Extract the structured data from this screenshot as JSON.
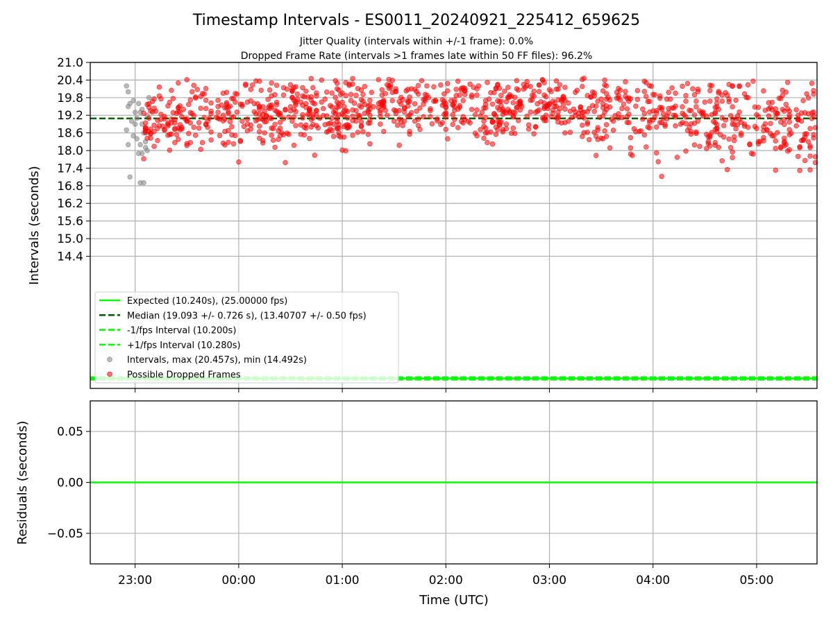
{
  "chart_data": [
    {
      "type": "scatter",
      "title": "Timestamp Intervals - ES0011_20240921_225412_659625",
      "subtitle_lines": [
        "Jitter Quality (intervals within +/-1 frame): 0.0%",
        "Dropped Frame Rate (intervals >1 frames late within 50 FF files): 96.2%"
      ],
      "xlabel": "",
      "ylabel": "Intervals (seconds)",
      "xlim": [
        "22:34",
        "05:35"
      ],
      "xticks": [
        {
          "t": "23:00",
          "label": ""
        },
        {
          "t": "00:00",
          "label": ""
        },
        {
          "t": "01:00",
          "label": ""
        },
        {
          "t": "02:00",
          "label": ""
        },
        {
          "t": "03:00",
          "label": ""
        },
        {
          "t": "04:00",
          "label": ""
        },
        {
          "t": "05:00",
          "label": ""
        }
      ],
      "ylim": [
        9.9,
        21.0
      ],
      "yticks": [
        14.4,
        15.0,
        15.6,
        16.2,
        16.8,
        17.4,
        18.0,
        18.6,
        19.2,
        19.8,
        20.4,
        21.0
      ],
      "ytick_labels": [
        "14.4",
        "15.0",
        "15.6",
        "16.2",
        "16.8",
        "17.4",
        "18.0",
        "18.6",
        "19.2",
        "19.8",
        "20.4",
        "21.0"
      ],
      "grid": true,
      "legend_position": "lower-left",
      "lines": [
        {
          "name": "Expected (10.240s), (25.00000 fps)",
          "y": 10.24,
          "color": "#00ff00",
          "style": "solid"
        },
        {
          "name": "Median (19.093 +/- 0.726 s), (13.40707 +/- 0.50 fps)",
          "y": 19.093,
          "color": "#006400",
          "style": "dashed"
        },
        {
          "name": "-1/fps Interval (10.200s)",
          "y": 10.2,
          "color": "#00ff00",
          "style": "dashed"
        },
        {
          "name": "+1/fps Interval (10.280s)",
          "y": 10.28,
          "color": "#00ff00",
          "style": "dashed"
        }
      ],
      "series": [
        {
          "name": "Intervals, max (20.457s), min (14.492s)",
          "color": "#808080",
          "points": [
            [
              "22:55",
              20.2
            ],
            [
              "22:56",
              20.0
            ],
            [
              "22:57",
              19.6
            ],
            [
              "22:59",
              19.7
            ],
            [
              "23:00",
              19.3
            ],
            [
              "23:01",
              19.1
            ],
            [
              "23:02",
              19.6
            ],
            [
              "23:03",
              19.3
            ],
            [
              "23:04",
              18.9
            ],
            [
              "23:05",
              18.6
            ],
            [
              "23:06",
              18.3
            ],
            [
              "23:07",
              18.0
            ],
            [
              "23:08",
              19.8
            ],
            [
              "22:55",
              18.7
            ],
            [
              "22:56",
              18.2
            ],
            [
              "22:57",
              17.1
            ],
            [
              "22:59",
              18.5
            ],
            [
              "23:00",
              18.9
            ],
            [
              "23:02",
              17.9
            ],
            [
              "23:03",
              16.9
            ],
            [
              "23:04",
              17.9
            ],
            [
              "23:05",
              16.9
            ],
            [
              "23:06",
              18.6
            ],
            [
              "23:07",
              19.2
            ],
            [
              "22:58",
              19.0
            ],
            [
              "23:01",
              18.4
            ],
            [
              "23:04",
              19.4
            ],
            [
              "23:06",
              18.1
            ],
            [
              "22:56",
              19.5
            ],
            [
              "23:03",
              18.2
            ]
          ]
        },
        {
          "name": "Possible Dropped Frames",
          "color": "#ff0000",
          "points": []
        }
      ]
    },
    {
      "type": "line",
      "title": "",
      "xlabel": "Time (UTC)",
      "ylabel": "Residuals (seconds)",
      "xlim": [
        "22:34",
        "05:35"
      ],
      "xticks": [
        {
          "t": "23:00",
          "label": "23:00"
        },
        {
          "t": "00:00",
          "label": "00:00"
        },
        {
          "t": "01:00",
          "label": "01:00"
        },
        {
          "t": "02:00",
          "label": "02:00"
        },
        {
          "t": "03:00",
          "label": "03:00"
        },
        {
          "t": "04:00",
          "label": "04:00"
        },
        {
          "t": "05:00",
          "label": "05:00"
        }
      ],
      "ylim": [
        -0.08,
        0.08
      ],
      "yticks": [
        -0.05,
        0.0,
        0.05
      ],
      "ytick_labels": [
        "−0.05",
        "0.00",
        "0.05"
      ],
      "grid": true,
      "series": [
        {
          "name": "",
          "color": "#00ff00",
          "points": [
            [
              "22:34",
              0.0
            ],
            [
              "05:35",
              0.0
            ]
          ]
        }
      ]
    }
  ]
}
